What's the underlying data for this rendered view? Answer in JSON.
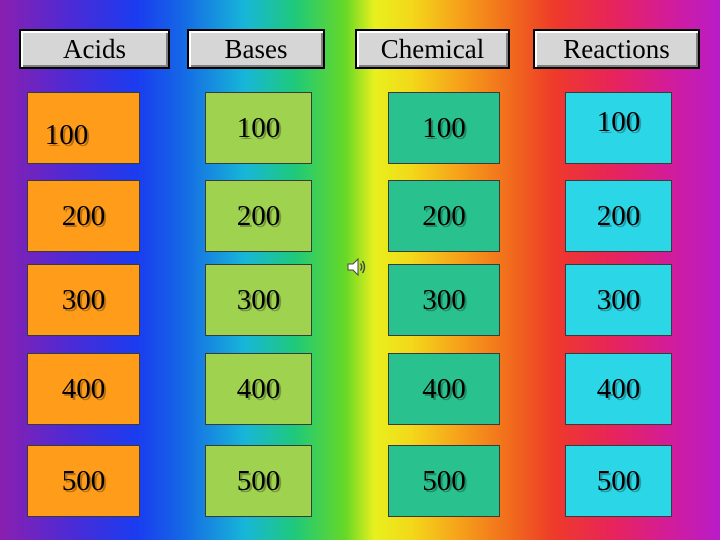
{
  "categories": [
    "Acids",
    "Bases",
    "Chemical",
    "Reactions"
  ],
  "board": {
    "rows": [
      [
        "100",
        "100",
        "100",
        "100"
      ],
      [
        "200",
        "200",
        "200",
        "200"
      ],
      [
        "300",
        "300",
        "300",
        "300"
      ],
      [
        "400",
        "400",
        "400",
        "400"
      ],
      [
        "500",
        "500",
        "500",
        "500"
      ]
    ]
  },
  "icons": {
    "sound": "speaker-icon"
  },
  "colors": {
    "acids": "#ff9c1a",
    "bases": "#9ed24f",
    "chemical": "#29c28f",
    "reactions": "#2bd6e6",
    "header": "#d6d6d6"
  }
}
